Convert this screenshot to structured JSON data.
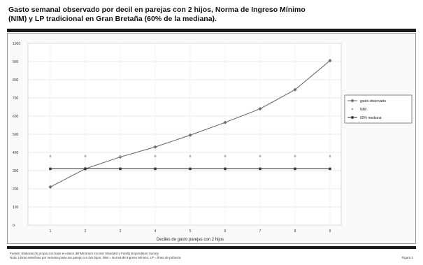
{
  "title_line1": "Gasto semanal observado por decil en parejas con 2 hijos, Norma de Ingreso Mínimo",
  "title_line2": "(NIM) y LP tradicional en Gran Bretaña (60% de la mediana).",
  "footnote_line1": "Fuente: Elaboración propia con base en datos del Minimum Income Standard y Family Expenditure Survey",
  "footnote_line2": "Nota: Libras esterlinas por semana para una pareja con dos hijos; NIM = Norma de Ingreso Mínimo; LP = línea de pobreza",
  "footnote_right": "Figura 1",
  "chart_data": {
    "type": "line",
    "title": "Gasto semanal observado por decil en parejas con 2 hijos, Norma de Ingreso Mínimo (NIM) y LP tradicional en Gran Bretaña (60% de la mediana).",
    "xlabel": "Deciles de gasto parejas con 2 hijos",
    "ylabel": "",
    "categories": [
      "1",
      "2",
      "3",
      "4",
      "5",
      "6",
      "7",
      "8",
      "9"
    ],
    "ylim": [
      0,
      1000
    ],
    "yticks": [
      "0",
      "100",
      "200",
      "300",
      "400",
      "500",
      "600",
      "700",
      "800",
      "900",
      "1000"
    ],
    "grid": true,
    "legend_position": "right",
    "series": [
      {
        "name": "gasto observado",
        "values": [
          210,
          310,
          375,
          430,
          495,
          565,
          640,
          745,
          905
        ],
        "color": "#6e6e6e",
        "marker": "diamond"
      },
      {
        "name": "NIM",
        "values": [
          380,
          380,
          380,
          380,
          380,
          380,
          380,
          380,
          380
        ],
        "color": "#a8a8a8",
        "marker": "dot"
      },
      {
        "name": "60% mediana",
        "values": [
          310,
          310,
          310,
          310,
          310,
          310,
          310,
          310,
          310
        ],
        "color": "#3c3c3c",
        "marker": "square"
      }
    ]
  }
}
